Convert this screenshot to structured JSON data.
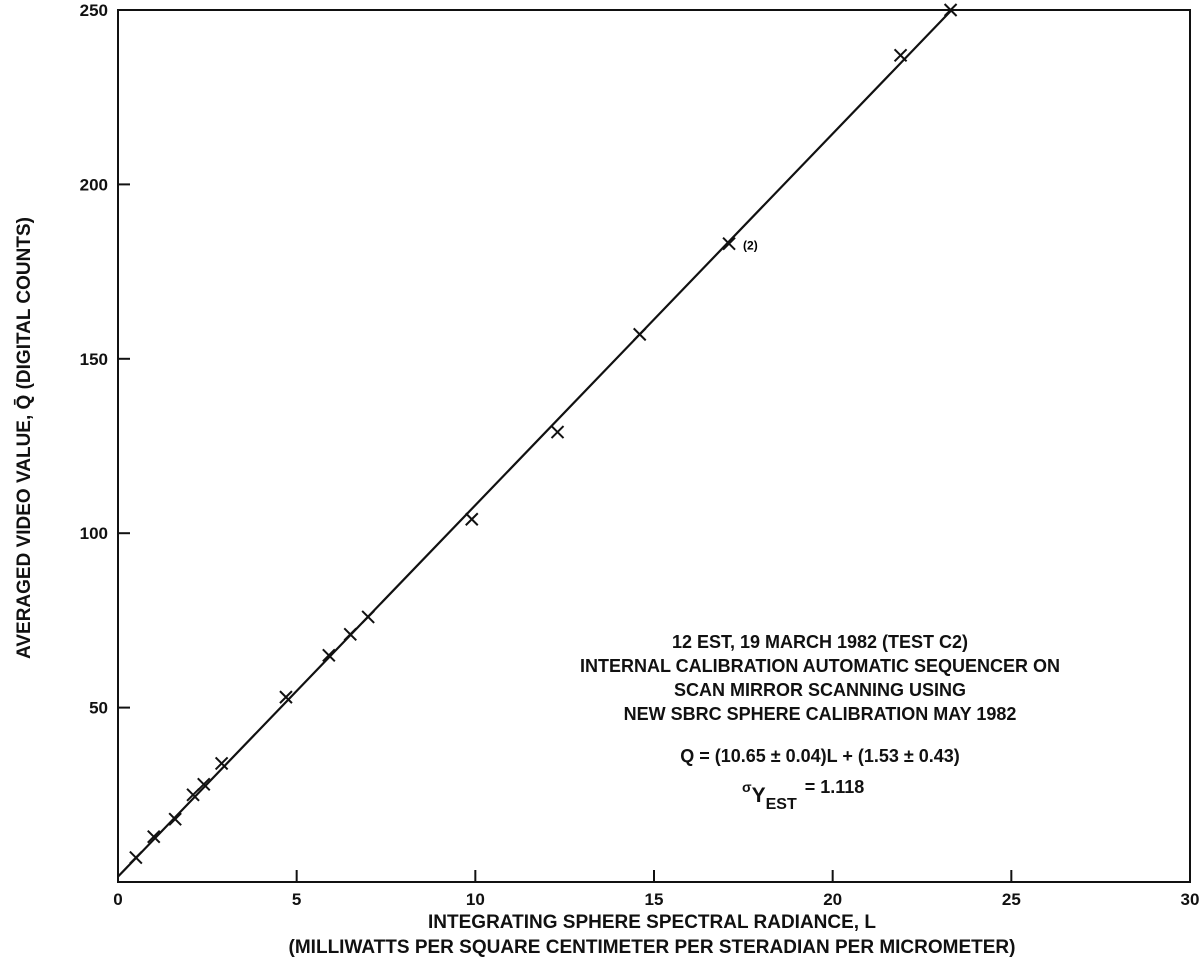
{
  "chart_data": {
    "type": "scatter",
    "title": "",
    "xlabel": "INTEGRATING SPHERE SPECTRAL RADIANCE, L",
    "xlabel_line2": "(MILLIWATTS PER SQUARE CENTIMETER PER STERADIAN PER MICROMETER)",
    "ylabel": "AVERAGED VIDEO VALUE, Q̄ (DIGITAL COUNTS)",
    "xlim": [
      0,
      30
    ],
    "ylim": [
      0,
      250
    ],
    "x_ticks": [
      0,
      5,
      10,
      15,
      20,
      25,
      30
    ],
    "y_ticks": [
      50,
      100,
      150,
      200,
      250
    ],
    "x_tick_labels": [
      "0",
      "5",
      "10",
      "15",
      "20",
      "25",
      "30"
    ],
    "y_tick_labels": [
      "50",
      "100",
      "150",
      "200",
      "250"
    ],
    "grid": false,
    "series": [
      {
        "marker": "x",
        "x": [
          0.5,
          1.0,
          1.6,
          2.1,
          2.4,
          2.9,
          4.7,
          5.9,
          6.5,
          7.0,
          9.9,
          12.3,
          14.6,
          17.1,
          21.9,
          23.3
        ],
        "y": [
          7,
          13,
          18,
          25,
          28,
          34,
          53,
          65,
          71,
          76,
          104,
          129,
          157,
          183,
          237,
          250
        ]
      }
    ],
    "fit_line": {
      "slope": 10.65,
      "intercept": 1.53,
      "x_range": [
        0,
        23.3
      ]
    },
    "point_labels": [
      {
        "text": "(2)",
        "x": 17.1,
        "y": 183
      }
    ],
    "annotations": {
      "line1": "12 EST, 19 MARCH 1982 (TEST C2)",
      "line2": "INTERNAL CALIBRATION AUTOMATIC SEQUENCER ON",
      "line3": "SCAN MIRROR SCANNING USING",
      "line4": "NEW SBRC SPHERE CALIBRATION MAY 1982",
      "equation": "Q = (10.65 ± 0.04)L + (1.53 ± 0.43)",
      "sigma_prefix": "σ",
      "sigma_main": "Y",
      "sigma_sub": "EST",
      "sigma_value": "= 1.118"
    }
  }
}
